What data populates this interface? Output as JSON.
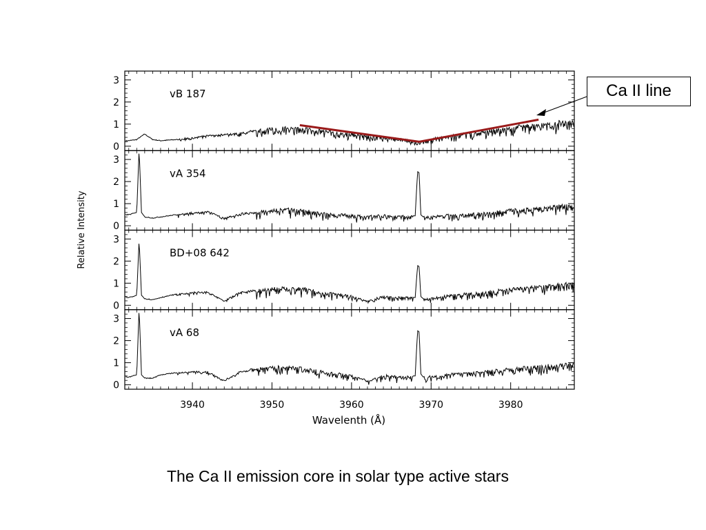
{
  "caption": "The Ca II emission core in solar type active stars",
  "callout": {
    "label": "Ca II line"
  },
  "colors": {
    "trace": "#000000",
    "ca_line": "#9a1a1a",
    "axes": "#000000"
  },
  "chart_data": {
    "type": "line",
    "title": "",
    "xlabel": "Wavelenth (Å)",
    "ylabel": "Relative Intensity",
    "xlim": [
      3931.5,
      3988
    ],
    "ylim": [
      -0.2,
      3.4
    ],
    "xticks": [
      3940,
      3950,
      3960,
      3970,
      3980
    ],
    "yticks": [
      0,
      1,
      2,
      3
    ],
    "grid": false,
    "ca_line_segments": [
      {
        "panel": 0,
        "points": [
          [
            3953.5,
            0.95
          ],
          [
            3968.5,
            0.2
          ],
          [
            3983.5,
            1.2
          ]
        ]
      }
    ],
    "panels": [
      {
        "name": "vB 187",
        "x": [
          3932,
          3933,
          3934,
          3935,
          3936,
          3938,
          3940,
          3942,
          3944,
          3946,
          3948,
          3950,
          3952,
          3954,
          3956,
          3958,
          3960,
          3962,
          3964,
          3966,
          3968,
          3968.5,
          3969,
          3970,
          3972,
          3974,
          3976,
          3978,
          3980,
          3982,
          3984,
          3986,
          3988
        ],
        "y": [
          0.25,
          0.3,
          0.55,
          0.3,
          0.25,
          0.3,
          0.4,
          0.5,
          0.55,
          0.6,
          0.75,
          0.85,
          0.9,
          0.85,
          0.75,
          0.65,
          0.6,
          0.5,
          0.45,
          0.35,
          0.25,
          0.2,
          0.25,
          0.35,
          0.45,
          0.6,
          0.65,
          0.8,
          0.9,
          1.0,
          1.05,
          1.15,
          1.2
        ]
      },
      {
        "name": "vA 354",
        "x": [
          3932,
          3933,
          3933.3,
          3933.6,
          3934,
          3935,
          3936,
          3938,
          3940,
          3942,
          3944,
          3946,
          3948,
          3950,
          3952,
          3954,
          3956,
          3958,
          3960,
          3962,
          3964,
          3966,
          3968,
          3968.3,
          3968.5,
          3968.7,
          3969,
          3970,
          3972,
          3974,
          3976,
          3978,
          3980,
          3982,
          3984,
          3986,
          3988
        ],
        "y": [
          0.5,
          0.6,
          3.45,
          0.6,
          0.4,
          0.35,
          0.4,
          0.5,
          0.6,
          0.65,
          0.35,
          0.55,
          0.65,
          0.75,
          0.8,
          0.75,
          0.6,
          0.55,
          0.5,
          0.45,
          0.5,
          0.45,
          0.45,
          2.45,
          2.4,
          0.5,
          0.4,
          0.45,
          0.5,
          0.55,
          0.6,
          0.65,
          0.75,
          0.8,
          0.85,
          0.95,
          1.0
        ]
      },
      {
        "name": "BD+08 642",
        "x": [
          3932,
          3933,
          3933.3,
          3933.6,
          3934,
          3935,
          3936,
          3938,
          3940,
          3942,
          3944,
          3946,
          3948,
          3950,
          3952,
          3954,
          3956,
          3958,
          3960,
          3962,
          3964,
          3966,
          3968,
          3968.3,
          3968.5,
          3968.7,
          3969,
          3970,
          3972,
          3974,
          3976,
          3978,
          3980,
          3982,
          3984,
          3986,
          3988
        ],
        "y": [
          0.35,
          0.45,
          2.95,
          0.45,
          0.3,
          0.25,
          0.35,
          0.5,
          0.6,
          0.6,
          0.2,
          0.6,
          0.7,
          0.8,
          0.85,
          0.8,
          0.6,
          0.55,
          0.45,
          0.2,
          0.45,
          0.4,
          0.35,
          1.8,
          1.75,
          0.4,
          0.3,
          0.35,
          0.45,
          0.55,
          0.6,
          0.7,
          0.8,
          0.85,
          0.9,
          1.0,
          1.05
        ]
      },
      {
        "name": "vA 68",
        "x": [
          3932,
          3933,
          3933.3,
          3933.6,
          3934,
          3935,
          3936,
          3938,
          3940,
          3942,
          3944,
          3946,
          3948,
          3950,
          3952,
          3954,
          3956,
          3958,
          3960,
          3962,
          3964,
          3966,
          3968,
          3968.3,
          3968.5,
          3968.7,
          3969,
          3970,
          3972,
          3974,
          3976,
          3978,
          3980,
          3982,
          3984,
          3986,
          3988
        ],
        "y": [
          0.35,
          0.45,
          3.45,
          0.45,
          0.3,
          0.3,
          0.45,
          0.55,
          0.6,
          0.6,
          0.2,
          0.6,
          0.75,
          0.85,
          0.85,
          0.8,
          0.65,
          0.55,
          0.45,
          0.2,
          0.45,
          0.4,
          0.4,
          2.45,
          2.4,
          0.5,
          0.35,
          0.4,
          0.5,
          0.55,
          0.6,
          0.7,
          0.75,
          0.85,
          0.9,
          0.95,
          1.0
        ]
      }
    ]
  }
}
